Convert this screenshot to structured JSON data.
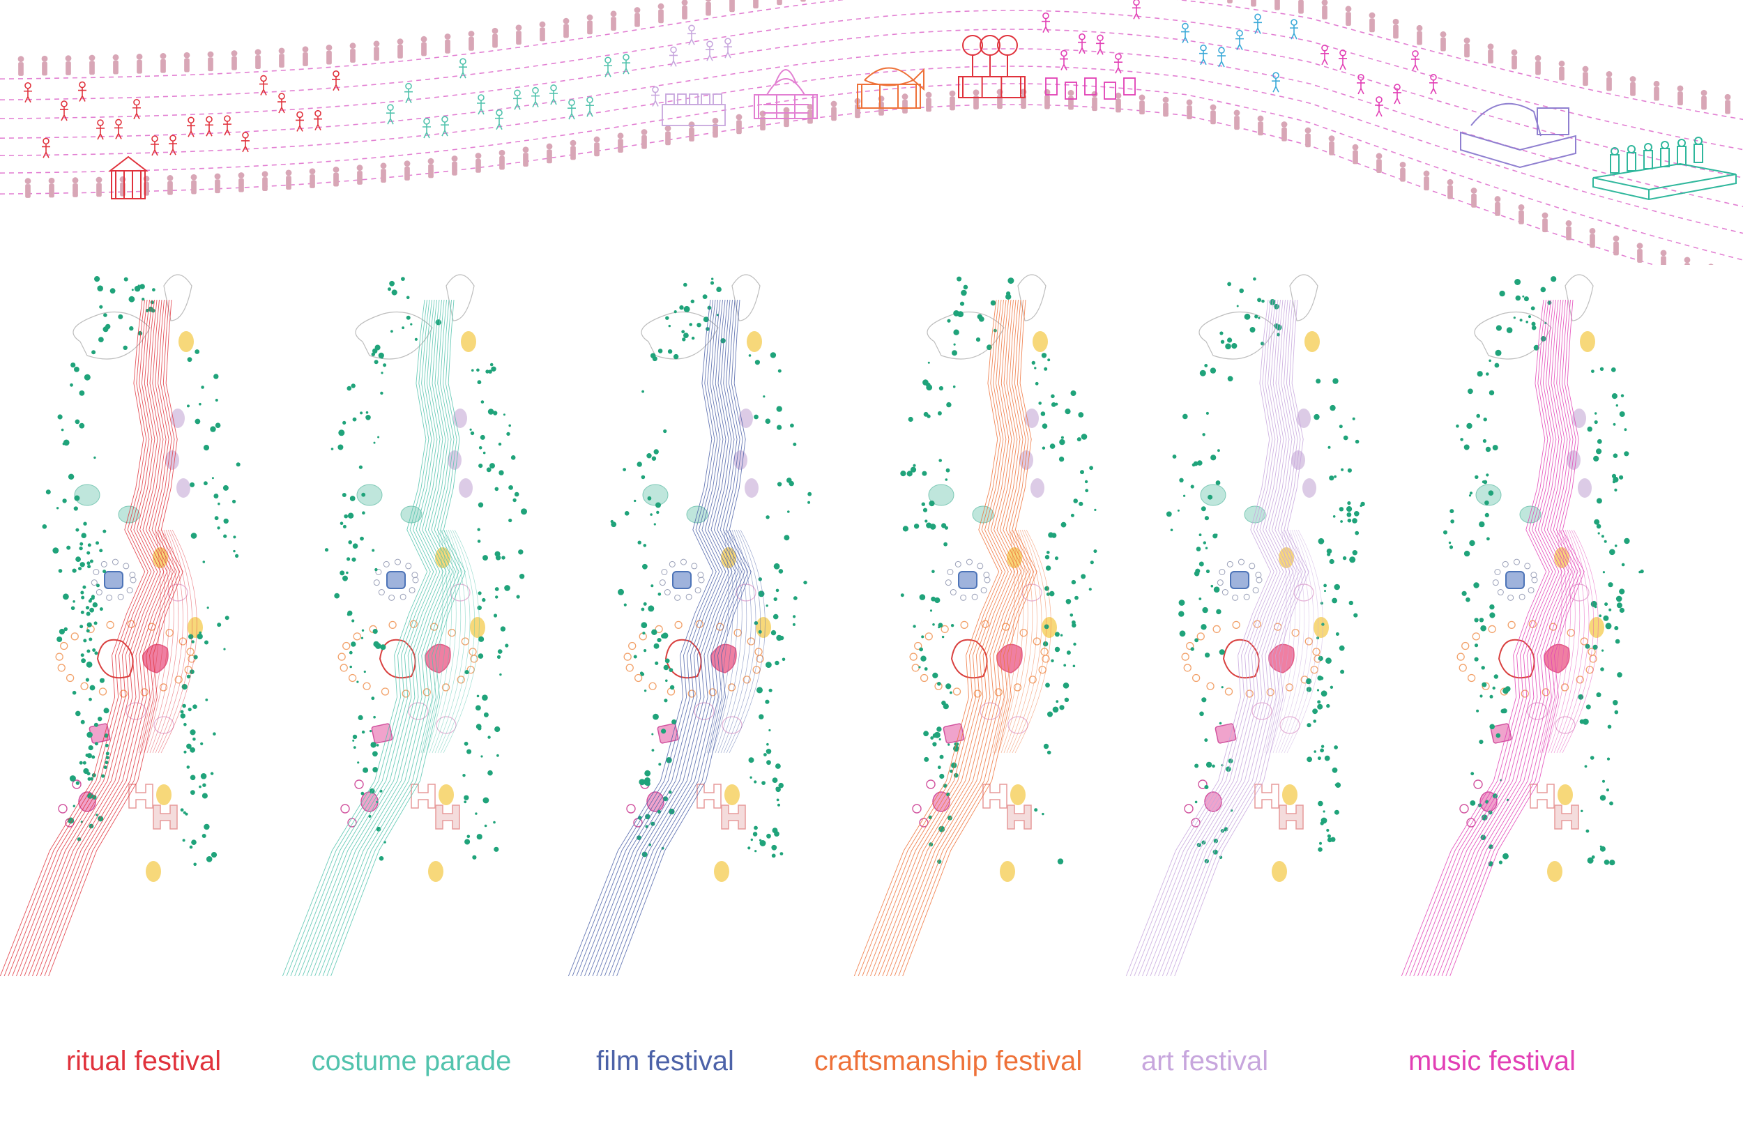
{
  "festivals": [
    {
      "label": "ritual festival",
      "color": "#e0323c"
    },
    {
      "label": "costume parade",
      "color": "#52c3ad"
    },
    {
      "label": "film festival",
      "color": "#4c62a8"
    },
    {
      "label": "craftsmanship festival",
      "color": "#ee7138"
    },
    {
      "label": "art festival",
      "color": "#c7a6dd"
    },
    {
      "label": "music festival",
      "color": "#e23fb5"
    }
  ],
  "procession": {
    "path_color": "#e27fd2",
    "crowd_color": "#d8a6b6",
    "float_icons": [
      "temple-float",
      "lotus-float",
      "fish-float",
      "balloon-float",
      "performer-group",
      "stage-float",
      "platform-float"
    ]
  },
  "map_colors": {
    "tree_dots": "#1fa37a",
    "pink_pavilion": "#ef7fa2",
    "yellow_patch": "#f7d87a",
    "teal_patch": "#bfe6dc",
    "blue_building": "#4d74b8",
    "lavender_patch": "#dccbe6",
    "outline_gray": "#bdbdbd"
  }
}
